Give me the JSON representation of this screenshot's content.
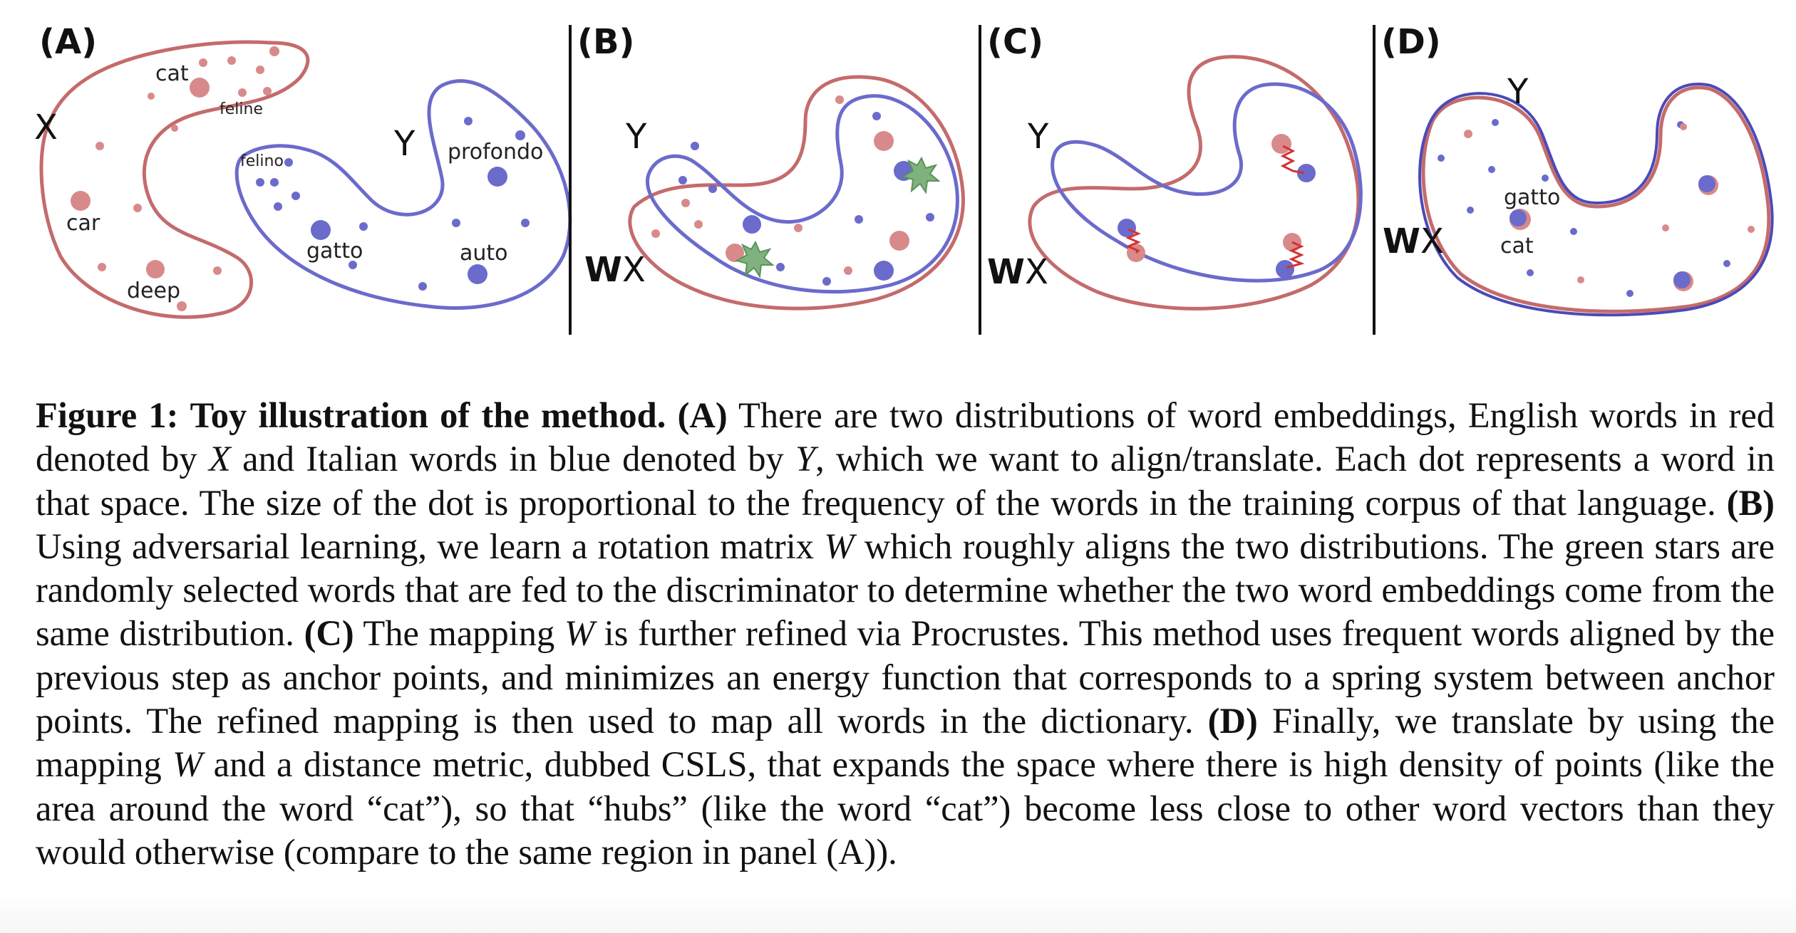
{
  "figure": {
    "panels": [
      {
        "label": "(A)",
        "x_label": "X",
        "y_label": "Y",
        "words": {
          "cat": "cat",
          "feline": "feline",
          "car": "car",
          "deep": "deep",
          "felino": "felino",
          "gatto": "gatto",
          "profondo": "profondo",
          "auto": "auto"
        }
      },
      {
        "label": "(B)",
        "y_label": "Y",
        "wx_w": "W",
        "wx_x": "X"
      },
      {
        "label": "(C)",
        "y_label": "Y",
        "wx_w": "W",
        "wx_x": "X"
      },
      {
        "label": "(D)",
        "y_label": "Y",
        "wx_w": "W",
        "wx_x": "X",
        "words": {
          "gatto": "gatto",
          "cat": "cat"
        }
      }
    ],
    "colors": {
      "english": "#c46b6b",
      "italian": "#6b6bcc",
      "star": "#7fb27f",
      "spring": "#d33333"
    }
  },
  "caption": {
    "figure_num": "Figure 1:",
    "title": "Toy illustration of the method.",
    "a_label": "(A)",
    "a_text1": " There are two distributions of word embeddings, English words in red denoted by ",
    "a_var1": "X",
    "a_text2": " and Italian words in blue denoted by ",
    "a_var2": "Y",
    "a_text3": ", which we want to align/translate. Each dot represents a word in that space. The size of the dot is proportional to the frequency of the words in the training corpus of that language. ",
    "b_label": "(B)",
    "b_text1": " Using adversarial learning, we learn a rotation matrix ",
    "b_var": "W",
    "b_text2": " which roughly aligns the two distributions. The green stars are randomly selected words that are fed to the discriminator to determine whether the two word embeddings come from the same distribution. ",
    "c_label": "(C)",
    "c_text1": " The mapping ",
    "c_var": "W",
    "c_text2": " is further refined via Procrustes. This method uses frequent words aligned by the previous step as anchor points, and minimizes an energy function that corresponds to a spring system between anchor points. The refined mapping is then used to map all words in the dictionary. ",
    "d_label": "(D)",
    "d_text1": " Finally, we translate by using the mapping ",
    "d_var": "W",
    "d_text2": " and a distance metric, dubbed CSLS, that expands the space where there is high density of points (like the area around the word “cat”), so that “hubs” (like the word “cat”) become less close to other word vectors than they would otherwise (compare to the same region in panel (A))."
  }
}
